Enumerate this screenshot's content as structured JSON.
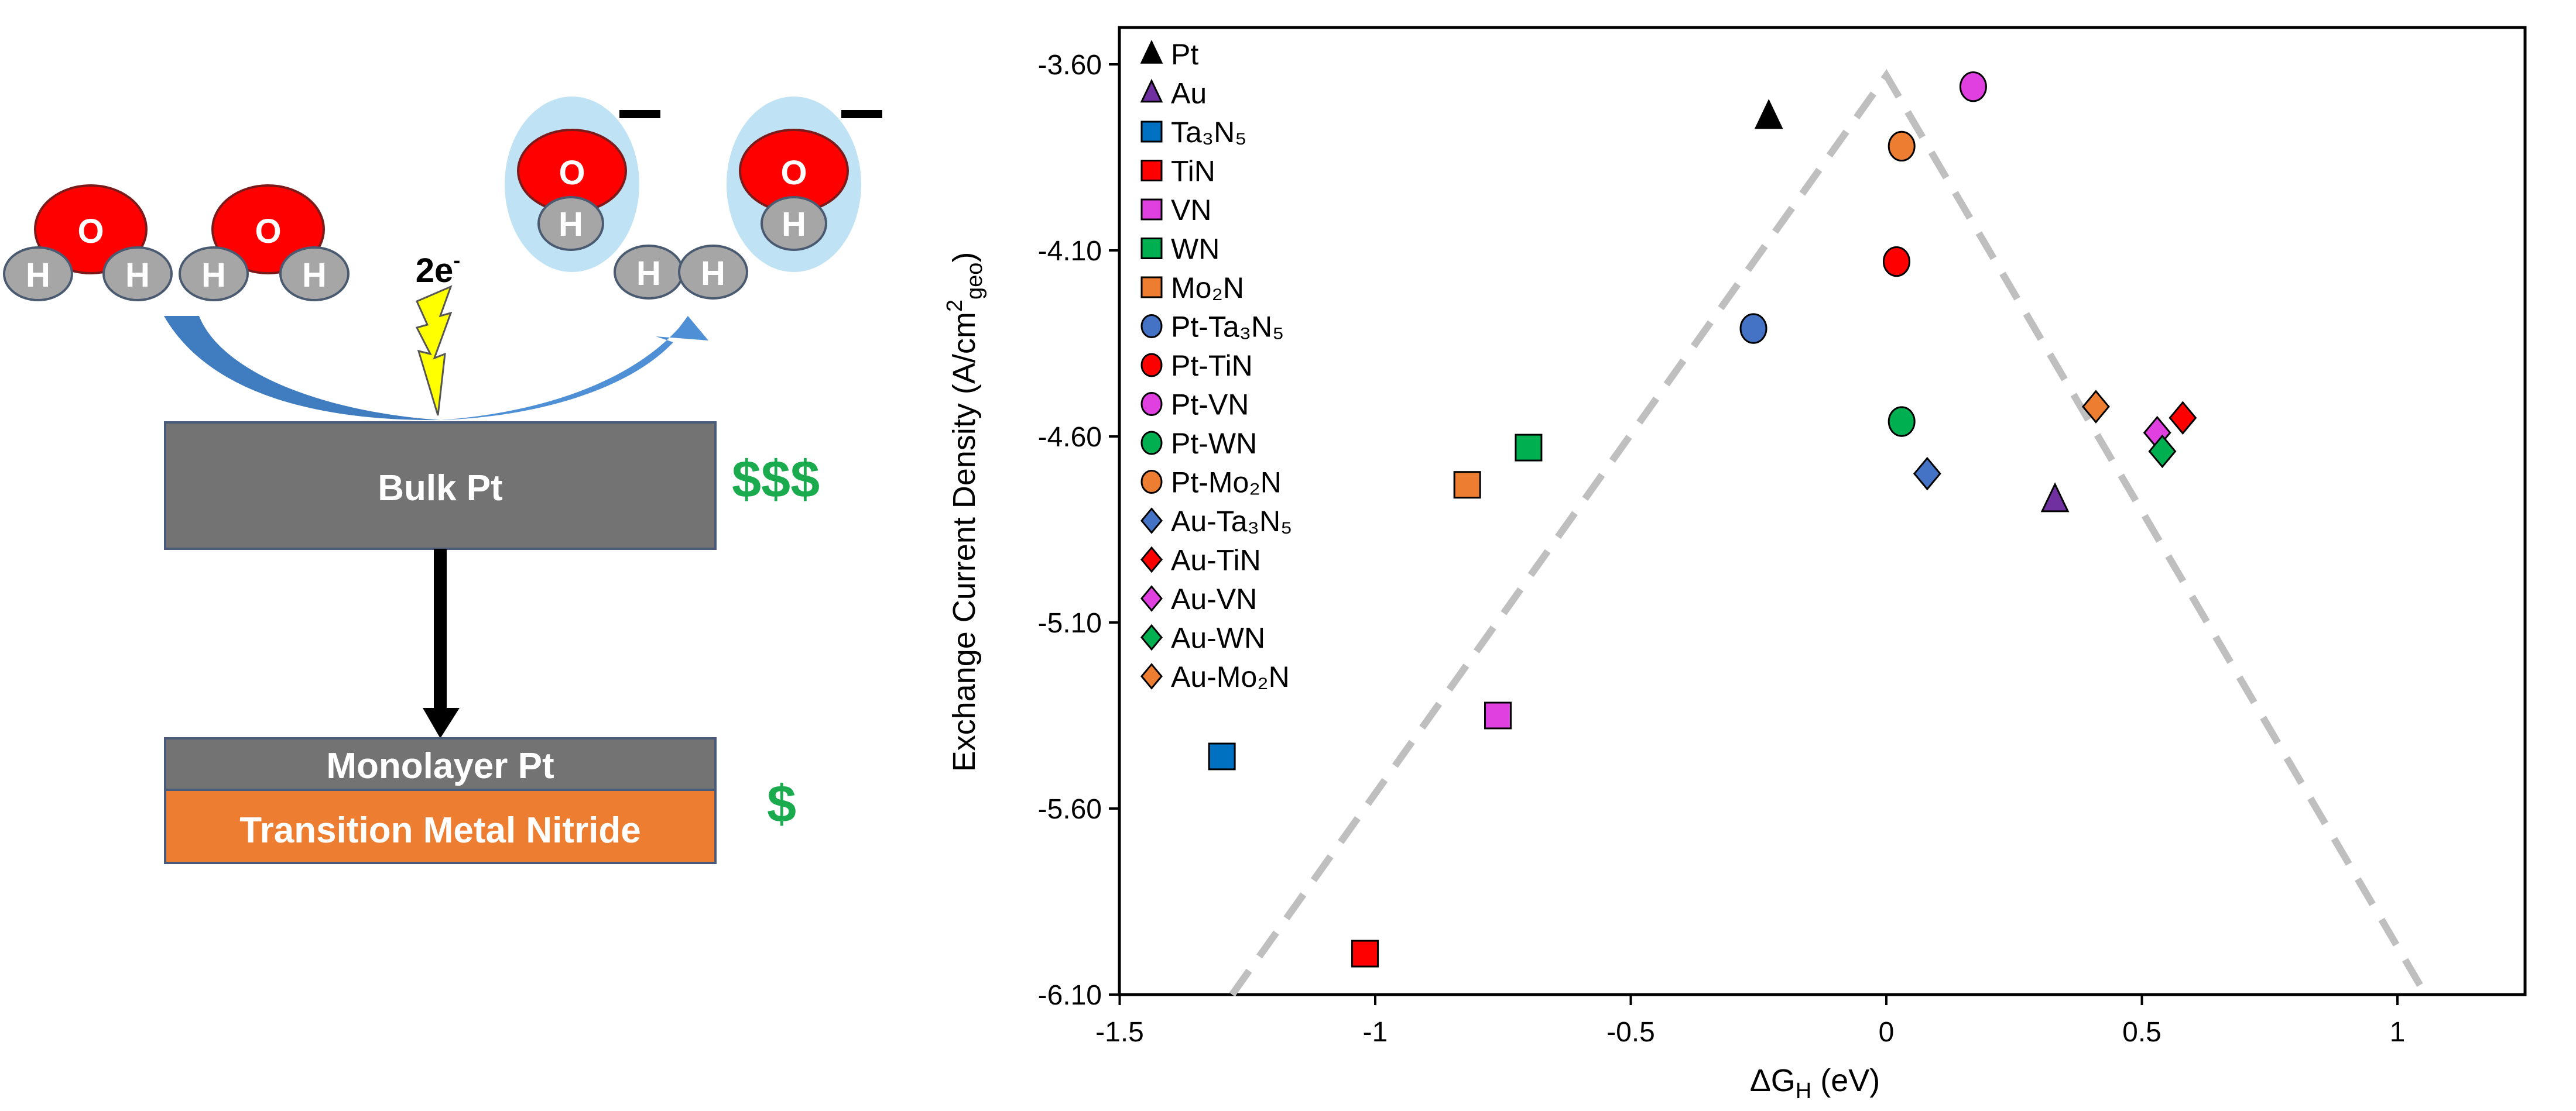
{
  "diagram": {
    "bulk_label": "Bulk Pt",
    "bulk_cost": "$$$",
    "monolayer_label": "Monolayer Pt",
    "substrate_label": "Transition Metal Nitride",
    "mono_cost": "$",
    "electrons": "2e",
    "electron_sup": "-",
    "oxygen": "O",
    "hydrogen": "H",
    "colors": {
      "pt": "#737373",
      "nitride": "#ed7d31",
      "money": "#1aab4f",
      "oxygen": "#ff0000",
      "hydrogen": "#a6a6a6",
      "ion": "#bfe3f5",
      "arrow": "#3f7cc0"
    }
  },
  "chart_data": {
    "type": "scatter",
    "xlabel": {
      "main": "ΔG",
      "sub": "H",
      "rest": " (eV)"
    },
    "ylabel": {
      "main": "Exchange Current Density (A/cm",
      "sup": "2",
      "sub": "geo",
      "rest": ")"
    },
    "xlim": [
      -1.5,
      1.25
    ],
    "ylim": [
      -6.1,
      -3.45
    ],
    "xticks": [
      "-1.5",
      "-1",
      "-0.5",
      "0",
      "0.5",
      "1"
    ],
    "xtick_values": [
      -1.5,
      -1,
      -0.5,
      0,
      0.5,
      1
    ],
    "yticks": [
      "-3.60",
      "-4.10",
      "-4.60",
      "-5.10",
      "-5.60",
      "-6.10"
    ],
    "ytick_values": [
      -3.6,
      -4.1,
      -4.6,
      -5.1,
      -5.6,
      -6.1
    ],
    "legend_position": "top-left",
    "volcano_line": {
      "style": "dashed",
      "color": "#bfbfbf",
      "points": [
        [
          -1.28,
          -6.1
        ],
        [
          0.0,
          -3.63
        ],
        [
          1.055,
          -6.1
        ]
      ]
    },
    "series": [
      {
        "name": "Pt",
        "marker": "triangle",
        "color": "#000000",
        "x": -0.23,
        "y": -3.74
      },
      {
        "name": "Au",
        "marker": "triangle",
        "color": "#7030a0",
        "x": 0.33,
        "y": -4.77
      },
      {
        "name": "Ta₃N₅",
        "marker": "square",
        "color": "#0070c0",
        "x": -1.3,
        "y": -5.46
      },
      {
        "name": "TiN",
        "marker": "square",
        "color": "#ff0000",
        "x": -1.02,
        "y": -5.99
      },
      {
        "name": "VN",
        "marker": "square",
        "color": "#e040e0",
        "x": -0.76,
        "y": -5.35
      },
      {
        "name": "WN",
        "marker": "square",
        "color": "#00b050",
        "x": -0.7,
        "y": -4.63
      },
      {
        "name": "Mo₂N",
        "marker": "square",
        "color": "#ed7d31",
        "x": -0.82,
        "y": -4.73
      },
      {
        "name": "Pt-Ta₃N₅",
        "marker": "circle",
        "color": "#4472c4",
        "x": -0.26,
        "y": -4.31
      },
      {
        "name": "Pt-TiN",
        "marker": "circle",
        "color": "#ff0000",
        "x": 0.02,
        "y": -4.13
      },
      {
        "name": "Pt-VN",
        "marker": "circle",
        "color": "#e040e0",
        "x": 0.17,
        "y": -3.66
      },
      {
        "name": "Pt-WN",
        "marker": "circle",
        "color": "#00b050",
        "x": 0.03,
        "y": -4.56
      },
      {
        "name": "Pt-Mo₂N",
        "marker": "circle",
        "color": "#ed7d31",
        "x": 0.03,
        "y": -3.82
      },
      {
        "name": "Au-Ta₃N₅",
        "marker": "diamond",
        "color": "#4472c4",
        "x": 0.08,
        "y": -4.7
      },
      {
        "name": "Au-TiN",
        "marker": "diamond",
        "color": "#ff0000",
        "x": 0.58,
        "y": -4.55
      },
      {
        "name": "Au-VN",
        "marker": "diamond",
        "color": "#e040e0",
        "x": 0.53,
        "y": -4.59
      },
      {
        "name": "Au-WN",
        "marker": "diamond",
        "color": "#00b050",
        "x": 0.54,
        "y": -4.64
      },
      {
        "name": "Au-Mo₂N",
        "marker": "diamond",
        "color": "#ed7d31",
        "x": 0.41,
        "y": -4.52
      }
    ]
  }
}
